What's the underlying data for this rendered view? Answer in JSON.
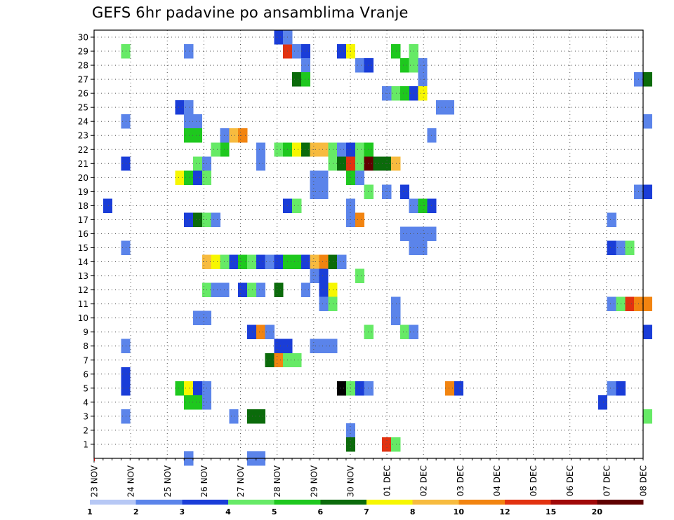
{
  "chart_data": {
    "type": "heatmap",
    "title": "GEFS 6hr padavine po ansamblima Vranje",
    "xlabel": "",
    "ylabel": "",
    "x_ticks": [
      "23 NOV",
      "24 NOV",
      "25 NOV",
      "26 NOV",
      "27 NOV",
      "28 NOV",
      "29 NOV",
      "30 NOV",
      "01 DEC",
      "02 DEC",
      "03 DEC",
      "04 DEC",
      "05 DEC",
      "06 DEC",
      "07 DEC",
      "08 DEC"
    ],
    "xlim": [
      0,
      61
    ],
    "y_ticks": [
      "1",
      "2",
      "3",
      "4",
      "5",
      "6",
      "7",
      "8",
      "9",
      "10",
      "11",
      "12",
      "13",
      "14",
      "15",
      "16",
      "17",
      "18",
      "19",
      "20",
      "21",
      "22",
      "23",
      "24",
      "25",
      "26",
      "27",
      "28",
      "29",
      "30"
    ],
    "ylim": [
      0,
      30.5
    ],
    "grid": true,
    "colorbar": {
      "labels": [
        "1",
        "2",
        "3",
        "4",
        "5",
        "6",
        "7",
        "8",
        "10",
        "12",
        "15",
        "20"
      ],
      "colors": [
        "#b7c8f5",
        "#5b84ea",
        "#1a3dd8",
        "#66ea66",
        "#1ec81e",
        "#0b6b0b",
        "#f7f700",
        "#f7bb3f",
        "#f28410",
        "#e23210",
        "#a00808",
        "#600000"
      ]
    },
    "cells": [
      [
        3,
        29,
        3
      ],
      [
        10,
        29,
        1
      ],
      [
        21,
        29,
        9
      ],
      [
        22,
        29,
        1
      ],
      [
        23,
        29,
        2
      ],
      [
        27,
        29,
        2
      ],
      [
        28,
        29,
        6
      ],
      [
        33,
        29,
        4
      ],
      [
        35,
        29,
        3
      ],
      [
        20,
        30,
        2
      ],
      [
        21,
        30,
        1
      ],
      [
        29,
        28,
        1
      ],
      [
        30,
        28,
        2
      ],
      [
        34,
        28,
        4
      ],
      [
        35,
        28,
        3
      ],
      [
        36,
        28,
        1
      ],
      [
        23,
        28,
        1
      ],
      [
        36,
        27,
        1
      ],
      [
        22,
        27,
        5
      ],
      [
        23,
        27,
        4
      ],
      [
        60,
        27,
        1
      ],
      [
        61,
        27,
        5
      ],
      [
        35,
        26,
        2
      ],
      [
        33,
        26,
        3
      ],
      [
        34,
        26,
        4
      ],
      [
        32,
        26,
        1
      ],
      [
        36,
        26,
        6
      ],
      [
        9,
        25,
        2
      ],
      [
        10,
        25,
        1
      ],
      [
        38,
        25,
        1
      ],
      [
        39,
        25,
        1
      ],
      [
        10,
        24,
        1
      ],
      [
        11,
        24,
        1
      ],
      [
        3,
        24,
        1
      ],
      [
        61,
        24,
        1
      ],
      [
        10,
        23,
        4
      ],
      [
        11,
        23,
        4
      ],
      [
        14,
        23,
        1
      ],
      [
        15,
        23,
        7
      ],
      [
        16,
        23,
        8
      ],
      [
        37,
        23,
        1
      ],
      [
        14,
        22,
        4
      ],
      [
        13,
        22,
        3
      ],
      [
        18,
        22,
        1
      ],
      [
        20,
        22,
        3
      ],
      [
        21,
        22,
        4
      ],
      [
        22,
        22,
        6
      ],
      [
        23,
        22,
        5
      ],
      [
        24,
        22,
        7
      ],
      [
        25,
        22,
        7
      ],
      [
        26,
        22,
        3
      ],
      [
        27,
        22,
        1
      ],
      [
        28,
        22,
        2
      ],
      [
        29,
        22,
        3
      ],
      [
        30,
        22,
        4
      ],
      [
        18,
        21,
        1
      ],
      [
        11,
        21,
        3
      ],
      [
        12,
        21,
        1
      ],
      [
        3,
        21,
        2
      ],
      [
        26,
        21,
        3
      ],
      [
        27,
        21,
        5
      ],
      [
        28,
        21,
        9
      ],
      [
        29,
        21,
        3
      ],
      [
        30,
        21,
        11
      ],
      [
        31,
        21,
        5
      ],
      [
        32,
        21,
        5
      ],
      [
        33,
        21,
        7
      ],
      [
        9,
        20,
        6
      ],
      [
        10,
        20,
        4
      ],
      [
        11,
        20,
        2
      ],
      [
        12,
        20,
        3
      ],
      [
        24,
        20,
        1
      ],
      [
        25,
        20,
        1
      ],
      [
        28,
        20,
        4
      ],
      [
        29,
        20,
        1
      ],
      [
        30,
        19,
        3
      ],
      [
        24,
        19,
        1
      ],
      [
        25,
        19,
        1
      ],
      [
        32,
        19,
        1
      ],
      [
        34,
        19,
        2
      ],
      [
        60,
        19,
        1
      ],
      [
        61,
        19,
        2
      ],
      [
        1,
        18,
        2
      ],
      [
        21,
        18,
        2
      ],
      [
        22,
        18,
        3
      ],
      [
        28,
        18,
        1
      ],
      [
        35,
        18,
        1
      ],
      [
        36,
        18,
        4
      ],
      [
        37,
        18,
        2
      ],
      [
        10,
        17,
        2
      ],
      [
        11,
        17,
        5
      ],
      [
        12,
        17,
        3
      ],
      [
        13,
        17,
        1
      ],
      [
        28,
        17,
        1
      ],
      [
        29,
        17,
        8
      ],
      [
        57,
        17,
        1
      ],
      [
        34,
        16,
        1
      ],
      [
        35,
        16,
        1
      ],
      [
        36,
        16,
        1
      ],
      [
        37,
        16,
        1
      ],
      [
        3,
        15,
        1
      ],
      [
        35,
        15,
        1
      ],
      [
        36,
        15,
        1
      ],
      [
        57,
        15,
        2
      ],
      [
        58,
        15,
        1
      ],
      [
        59,
        15,
        3
      ],
      [
        12,
        14,
        7
      ],
      [
        13,
        14,
        6
      ],
      [
        14,
        14,
        3
      ],
      [
        15,
        14,
        2
      ],
      [
        16,
        14,
        4
      ],
      [
        17,
        14,
        3
      ],
      [
        18,
        14,
        2
      ],
      [
        19,
        14,
        1
      ],
      [
        20,
        14,
        2
      ],
      [
        21,
        14,
        4
      ],
      [
        22,
        14,
        4
      ],
      [
        23,
        14,
        2
      ],
      [
        24,
        14,
        7
      ],
      [
        25,
        14,
        8
      ],
      [
        26,
        14,
        5
      ],
      [
        27,
        14,
        1
      ],
      [
        24,
        13,
        1
      ],
      [
        25,
        13,
        2
      ],
      [
        29,
        13,
        3
      ],
      [
        12,
        12,
        3
      ],
      [
        13,
        12,
        1
      ],
      [
        14,
        12,
        1
      ],
      [
        16,
        12,
        2
      ],
      [
        17,
        12,
        3
      ],
      [
        18,
        12,
        1
      ],
      [
        20,
        12,
        5
      ],
      [
        23,
        12,
        1
      ],
      [
        25,
        12,
        2
      ],
      [
        26,
        12,
        6
      ],
      [
        25,
        11,
        1
      ],
      [
        26,
        11,
        3
      ],
      [
        33,
        11,
        1
      ],
      [
        57,
        11,
        1
      ],
      [
        58,
        11,
        3
      ],
      [
        59,
        11,
        9
      ],
      [
        60,
        11,
        8
      ],
      [
        61,
        11,
        8
      ],
      [
        11,
        10,
        1
      ],
      [
        12,
        10,
        1
      ],
      [
        33,
        10,
        1
      ],
      [
        17,
        9,
        2
      ],
      [
        18,
        9,
        8
      ],
      [
        19,
        9,
        1
      ],
      [
        30,
        9,
        3
      ],
      [
        34,
        9,
        3
      ],
      [
        35,
        9,
        1
      ],
      [
        61,
        9,
        2
      ],
      [
        3,
        8,
        1
      ],
      [
        20,
        8,
        2
      ],
      [
        21,
        8,
        2
      ],
      [
        24,
        8,
        1
      ],
      [
        25,
        8,
        1
      ],
      [
        26,
        8,
        1
      ],
      [
        19,
        7,
        5
      ],
      [
        20,
        7,
        8
      ],
      [
        21,
        7,
        3
      ],
      [
        22,
        7,
        3
      ],
      [
        3,
        6,
        2
      ],
      [
        3,
        5,
        2
      ],
      [
        9,
        5,
        4
      ],
      [
        10,
        5,
        6
      ],
      [
        11,
        5,
        2
      ],
      [
        12,
        5,
        1
      ],
      [
        27,
        5,
        12
      ],
      [
        28,
        5,
        3
      ],
      [
        29,
        5,
        2
      ],
      [
        30,
        5,
        1
      ],
      [
        39,
        5,
        8
      ],
      [
        40,
        5,
        2
      ],
      [
        57,
        5,
        1
      ],
      [
        58,
        5,
        2
      ],
      [
        10,
        4,
        4
      ],
      [
        11,
        4,
        4
      ],
      [
        12,
        4,
        1
      ],
      [
        56,
        4,
        2
      ],
      [
        3,
        3,
        1
      ],
      [
        15,
        3,
        1
      ],
      [
        17,
        3,
        5
      ],
      [
        18,
        3,
        5
      ],
      [
        61,
        3,
        3
      ],
      [
        28,
        2,
        1
      ],
      [
        28,
        1,
        5
      ],
      [
        32,
        1,
        9
      ],
      [
        33,
        1,
        3
      ],
      [
        10,
        0,
        1
      ],
      [
        17,
        0,
        1
      ],
      [
        18,
        0,
        1
      ]
    ]
  }
}
